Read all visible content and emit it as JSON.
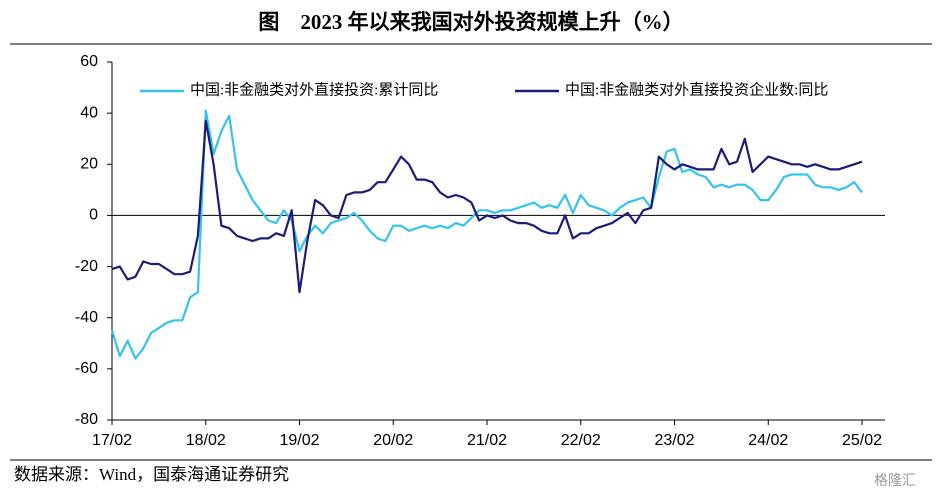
{
  "chart_data": {
    "type": "line",
    "title": "图　2023 年以来我国对外投资规模上升（%）",
    "source": "数据来源：Wind，国泰海通证券研究",
    "watermark": "格隆汇",
    "categories": [
      "17/02",
      null,
      null,
      null,
      null,
      null,
      null,
      null,
      null,
      null,
      null,
      null,
      "18/02",
      null,
      null,
      null,
      null,
      null,
      null,
      null,
      null,
      null,
      null,
      null,
      "19/02",
      null,
      null,
      null,
      null,
      null,
      null,
      null,
      null,
      null,
      null,
      null,
      "20/02",
      null,
      null,
      null,
      null,
      null,
      null,
      null,
      null,
      null,
      null,
      null,
      "21/02",
      null,
      null,
      null,
      null,
      null,
      null,
      null,
      null,
      null,
      null,
      null,
      "22/02",
      null,
      null,
      null,
      null,
      null,
      null,
      null,
      null,
      null,
      null,
      null,
      "23/02",
      null,
      null,
      null,
      null,
      null,
      null,
      null,
      null,
      null,
      null,
      null,
      "24/02",
      null,
      null,
      null,
      null,
      null,
      null,
      null,
      null,
      null,
      null,
      null,
      "25/02"
    ],
    "series": [
      {
        "name": "中国:非金融类对外直接投资:累计同比",
        "color": "#33c3ee",
        "values": [
          -45,
          -55,
          -49,
          -56,
          -52,
          -46,
          -44,
          -42,
          -41,
          -41,
          -32,
          -30,
          41,
          24,
          33,
          39,
          18,
          12,
          6,
          2,
          -2,
          -3,
          2,
          -2,
          -14,
          -8,
          -4,
          -7,
          -3,
          -2,
          -1,
          1,
          -2,
          -6,
          -9,
          -10,
          -4,
          -4,
          -6,
          -5,
          -4,
          -5,
          -4,
          -5,
          -3,
          -4,
          -1,
          2,
          2,
          1,
          2,
          2,
          3,
          4,
          5,
          3,
          4,
          3,
          8,
          1,
          8,
          4,
          3,
          2,
          0,
          3,
          5,
          6,
          7,
          3,
          15,
          25,
          26,
          17,
          18,
          16,
          15,
          11,
          12,
          11,
          12,
          12,
          10,
          6,
          6,
          10,
          15,
          16,
          16,
          16,
          12,
          11,
          11,
          10,
          11,
          13,
          9
        ]
      },
      {
        "name": "中国:非金融类对外直接投资企业数:同比",
        "color": "#1c1c78",
        "values": [
          -21,
          -20,
          -25,
          -24,
          -18,
          -19,
          -19,
          -21,
          -23,
          -23,
          -22,
          -8,
          37,
          20,
          -4,
          -5,
          -8,
          -9,
          -10,
          -9,
          -9,
          -7,
          -8,
          2,
          -30,
          -10,
          6,
          4,
          0,
          -1,
          8,
          9,
          9,
          10,
          13,
          13,
          18,
          23,
          20,
          14,
          14,
          13,
          9,
          7,
          8,
          7,
          5,
          -2,
          0,
          -1,
          0,
          -2,
          -3,
          -3,
          -4,
          -6,
          -7,
          -7,
          0,
          -9,
          -7,
          -7,
          -5,
          -4,
          -3,
          -1,
          1,
          -3,
          2,
          3,
          23,
          20,
          18,
          20,
          19,
          18,
          18,
          18,
          26,
          20,
          21,
          30,
          17,
          20,
          23,
          22,
          21,
          20,
          20,
          19,
          20,
          19,
          18,
          18,
          19,
          20,
          21
        ]
      }
    ],
    "ylim": [
      -80,
      60
    ],
    "yticks": [
      -80,
      -60,
      -40,
      -20,
      0,
      20,
      40,
      60
    ],
    "grid": false,
    "legend": "top"
  }
}
